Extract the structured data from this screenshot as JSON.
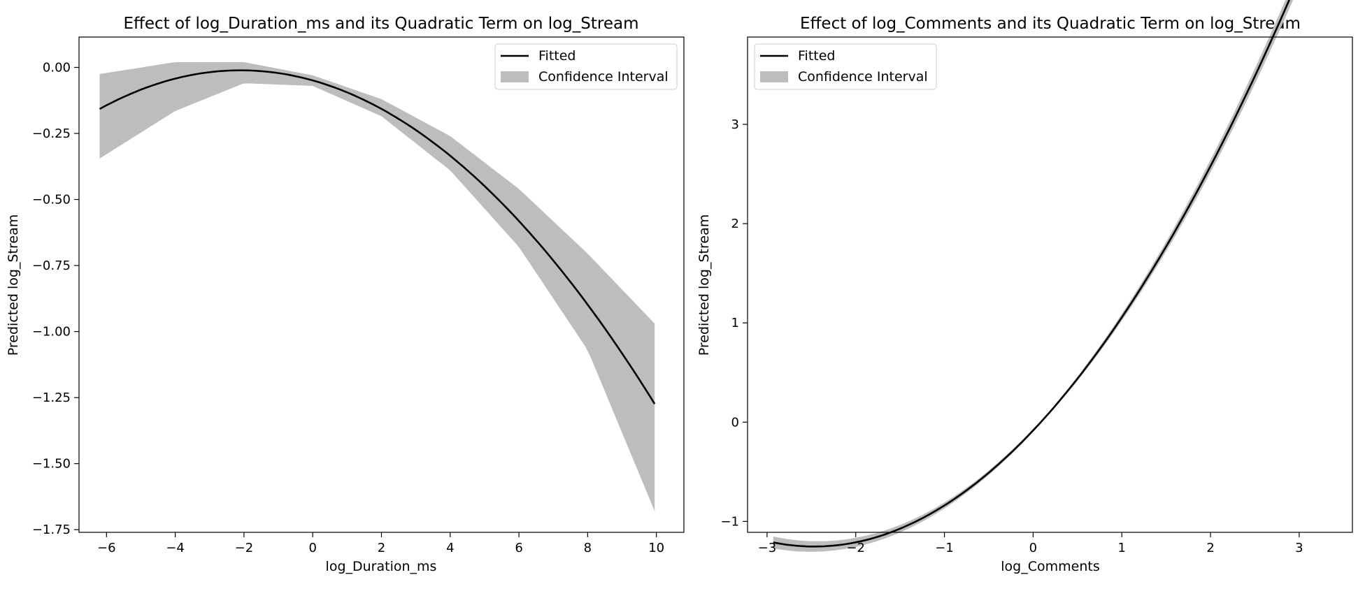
{
  "chart_data": [
    {
      "type": "line",
      "title": "Effect of log_Duration_ms and its Quadratic Term on log_Stream",
      "xlabel": "log_Duration_ms",
      "ylabel": "Predicted log_Stream",
      "xlim": [
        -6.8,
        10.8
      ],
      "ylim": [
        -1.76,
        0.115
      ],
      "xticks": [
        -6,
        -4,
        -2,
        0,
        2,
        4,
        6,
        8,
        10
      ],
      "yticks": [
        0.0,
        -0.25,
        -0.5,
        -0.75,
        -1.0,
        -1.25,
        -1.5,
        -1.75
      ],
      "xtick_labels": [
        "−6",
        "−4",
        "−2",
        "0",
        "2",
        "4",
        "6",
        "8",
        "10"
      ],
      "ytick_labels": [
        "0.00",
        "−0.25",
        "−0.50",
        "−0.75",
        "−1.00",
        "−1.25",
        "−1.50",
        "−1.75"
      ],
      "grid": false,
      "legend_position": "top-right",
      "x_range": [
        -6.2,
        9.95
      ],
      "fit": {
        "a": -0.0087,
        "b": -0.0365,
        "c": -0.0493
      },
      "ci_points": [
        {
          "x": -6.2,
          "lower": -0.345,
          "upper": -0.025
        },
        {
          "x": -4.0,
          "lower": -0.165,
          "upper": 0.02
        },
        {
          "x": -2.0,
          "lower": -0.06,
          "upper": 0.02
        },
        {
          "x": 0.0,
          "lower": -0.07,
          "upper": -0.03
        },
        {
          "x": 2.0,
          "lower": -0.185,
          "upper": -0.12
        },
        {
          "x": 4.0,
          "lower": -0.39,
          "upper": -0.26
        },
        {
          "x": 6.0,
          "lower": -0.68,
          "upper": -0.46
        },
        {
          "x": 8.0,
          "lower": -1.07,
          "upper": -0.705
        },
        {
          "x": 9.95,
          "lower": -1.68,
          "upper": -0.97
        }
      ],
      "series": [
        {
          "name": "Fitted",
          "color": "#000000"
        },
        {
          "name": "Confidence Interval",
          "color": "#bdbdbd"
        }
      ]
    },
    {
      "type": "line",
      "title": "Effect of log_Comments and its Quadratic Term on log_Stream",
      "xlabel": "log_Comments",
      "ylabel": "Predicted log_Stream",
      "xlim": [
        -3.22,
        3.6
      ],
      "ylim": [
        -1.11,
        3.88
      ],
      "xticks": [
        -3,
        -2,
        -1,
        0,
        1,
        2,
        3
      ],
      "yticks": [
        3,
        2,
        1,
        0,
        -1
      ],
      "xtick_labels": [
        "−3",
        "−2",
        "−1",
        "0",
        "1",
        "2",
        "3"
      ],
      "ytick_labels": [
        "3",
        "2",
        "1",
        "0",
        "−1"
      ],
      "grid": false,
      "legend_position": "top-left",
      "x_range": [
        -2.93,
        3.3
      ],
      "fit": {
        "a": 0.192,
        "b": 0.9476,
        "c": -0.0838
      },
      "ci_half_width": {
        "at_low_end": 0.06,
        "at_middle": 0.012,
        "at_high_end": 0.1
      },
      "series": [
        {
          "name": "Fitted",
          "color": "#000000"
        },
        {
          "name": "Confidence Interval",
          "color": "#bdbdbd"
        }
      ]
    }
  ]
}
